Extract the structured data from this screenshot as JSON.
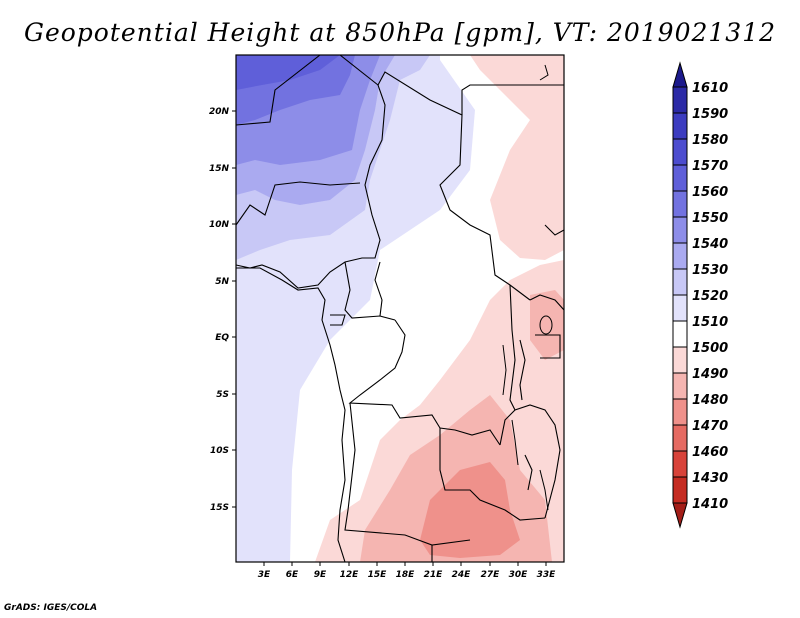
{
  "title": "Geopotential Height at 850hPa [gpm], VT: 2019021312",
  "credit": "GrADS: IGES/COLA",
  "map": {
    "lat_labels": [
      "20N",
      "15N",
      "10N",
      "5N",
      "EQ",
      "5S",
      "10S",
      "15S"
    ],
    "lon_labels": [
      "3E",
      "6E",
      "9E",
      "12E",
      "15E",
      "18E",
      "21E",
      "24E",
      "27E",
      "30E",
      "33E"
    ]
  },
  "colorbar": {
    "levels": [
      "1610",
      "1590",
      "1580",
      "1570",
      "1560",
      "1550",
      "1540",
      "1530",
      "1520",
      "1510",
      "1500",
      "1490",
      "1480",
      "1470",
      "1460",
      "1430",
      "1410"
    ],
    "colors": [
      "#1c1a8c",
      "#2b2aa6",
      "#3c3cc0",
      "#4d4dcf",
      "#5f5fd9",
      "#7272e0",
      "#8d8de8",
      "#aaaaf0",
      "#c8c8f6",
      "#e2e2fb",
      "#ffffff",
      "#fbd9d7",
      "#f5b5b1",
      "#ef918b",
      "#e56a62",
      "#d8433a",
      "#c52c22",
      "#a31e18"
    ]
  }
}
